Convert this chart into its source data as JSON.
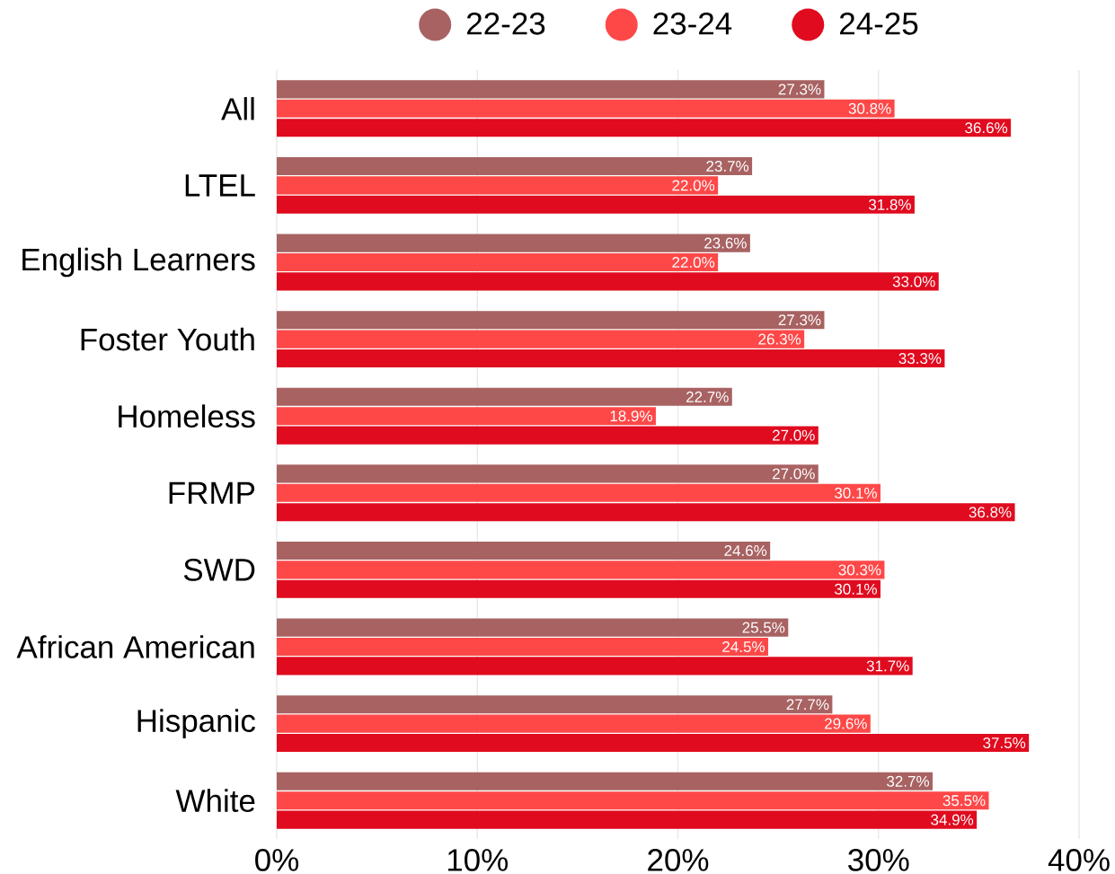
{
  "chart_data": {
    "type": "bar",
    "orientation": "horizontal",
    "categories": [
      "All",
      "LTEL",
      "English Learners",
      "Foster Youth",
      "Homeless",
      "FRMP",
      "SWD",
      "African American",
      "Hispanic",
      "White"
    ],
    "series": [
      {
        "name": "22-23",
        "color": "#a86262",
        "values": [
          27.3,
          23.7,
          23.6,
          27.3,
          22.7,
          27.0,
          24.6,
          25.5,
          27.7,
          32.7
        ],
        "value_labels": [
          "27.3%",
          "23.7%",
          "23.6%",
          "27.3%",
          "22.7%",
          "27.0%",
          "24.6%",
          "25.5%",
          "27.7%",
          "32.7%"
        ]
      },
      {
        "name": "23-24",
        "color": "#fe4848",
        "values": [
          30.8,
          22.0,
          22.0,
          26.3,
          18.9,
          30.1,
          30.3,
          24.5,
          29.6,
          35.5
        ],
        "value_labels": [
          "30.8%",
          "22.0%",
          "22.0%",
          "26.3%",
          "18.9%",
          "30.1%",
          "30.3%",
          "24.5%",
          "29.6%",
          "35.5%"
        ]
      },
      {
        "name": "24-25",
        "color": "#e00b1f",
        "values": [
          36.6,
          31.8,
          33.0,
          33.3,
          27.0,
          36.8,
          30.1,
          31.7,
          37.5,
          34.9
        ],
        "value_labels": [
          "36.6%",
          "31.8%",
          "33.0%",
          "33.3%",
          "27.0%",
          "36.8%",
          "30.1%",
          "31.7%",
          "37.5%",
          "34.9%"
        ]
      }
    ],
    "xlim": [
      0,
      40
    ],
    "xticks": [
      {
        "value": 0,
        "label": "0%"
      },
      {
        "value": 10,
        "label": "10%"
      },
      {
        "value": 20,
        "label": "20%"
      },
      {
        "value": 30,
        "label": "30%"
      },
      {
        "value": 40,
        "label": "40%"
      }
    ],
    "grid": "x",
    "legend": "top"
  }
}
